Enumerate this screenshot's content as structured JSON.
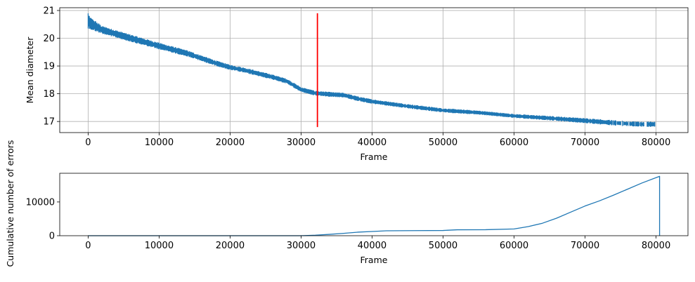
{
  "chart_data": [
    {
      "type": "scatter",
      "xlabel": "Frame",
      "ylabel": "Mean diameter",
      "xlim": [
        -4000,
        84500
      ],
      "ylim": [
        16.6,
        21.1
      ],
      "xticks": [
        0,
        10000,
        20000,
        30000,
        40000,
        50000,
        60000,
        70000,
        80000
      ],
      "yticks": [
        17,
        18,
        19,
        20,
        21
      ],
      "grid": true,
      "series_color": "#1f77b4",
      "marker_color": "#ff0000",
      "marker": {
        "x": 32300,
        "y_range": [
          16.8,
          20.9
        ]
      },
      "trend": [
        [
          0,
          20.7
        ],
        [
          200,
          20.55
        ],
        [
          2000,
          20.3
        ],
        [
          6000,
          20.0
        ],
        [
          10000,
          19.72
        ],
        [
          14000,
          19.45
        ],
        [
          18000,
          19.1
        ],
        [
          20000,
          18.95
        ],
        [
          22000,
          18.85
        ],
        [
          26000,
          18.6
        ],
        [
          28000,
          18.45
        ],
        [
          30000,
          18.15
        ],
        [
          32000,
          18.02
        ],
        [
          34000,
          17.98
        ],
        [
          36000,
          17.95
        ],
        [
          38000,
          17.82
        ],
        [
          40000,
          17.72
        ],
        [
          45000,
          17.55
        ],
        [
          50000,
          17.4
        ],
        [
          55000,
          17.32
        ],
        [
          60000,
          17.2
        ],
        [
          65000,
          17.12
        ],
        [
          70000,
          17.03
        ],
        [
          73000,
          16.97
        ],
        [
          76000,
          16.92
        ],
        [
          78000,
          16.9
        ],
        [
          80000,
          16.9
        ]
      ],
      "band_halfwidth": [
        [
          0,
          0.2
        ],
        [
          2000,
          0.12
        ],
        [
          20000,
          0.08
        ],
        [
          40000,
          0.07
        ],
        [
          60000,
          0.06
        ],
        [
          72000,
          0.08
        ],
        [
          80000,
          0.08
        ]
      ],
      "data_extent": [
        0,
        80000
      ]
    },
    {
      "type": "line",
      "xlabel": "Frame",
      "ylabel": "Cumulative number of errors",
      "xlim": [
        -4000,
        84500
      ],
      "ylim": [
        0,
        18500
      ],
      "xticks": [
        0,
        10000,
        20000,
        30000,
        40000,
        50000,
        60000,
        70000,
        80000
      ],
      "yticks": [
        0,
        10000
      ],
      "grid": false,
      "series_color": "#1f77b4",
      "x": [
        0,
        30000,
        32000,
        34000,
        36000,
        38000,
        40000,
        42000,
        46000,
        50000,
        52000,
        56000,
        60000,
        62000,
        64000,
        66000,
        68000,
        70000,
        72000,
        74000,
        76000,
        78000,
        80000,
        80500,
        80500
      ],
      "values": [
        0,
        0,
        150,
        400,
        700,
        1050,
        1250,
        1450,
        1500,
        1550,
        1750,
        1780,
        2000,
        2700,
        3700,
        5200,
        7000,
        8800,
        10300,
        12000,
        13800,
        15600,
        17200,
        17600,
        0
      ]
    }
  ]
}
